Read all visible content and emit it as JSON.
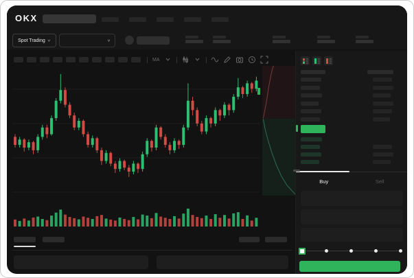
{
  "header": {
    "logo": "OKX",
    "nav_pill_count": 5,
    "market_selector": {
      "label": "Spot Trading"
    },
    "ticker_stat_count": 5
  },
  "toolbar": {
    "timeframe_pill_count": 10,
    "icons": [
      "ma-indicator-icon",
      "chevron-down-icon",
      "candle-style-icon",
      "chevron-down-icon",
      "line-wave-icon",
      "pencil-draw-icon",
      "camera-snapshot-icon",
      "history-clock-icon",
      "fullscreen-icon"
    ]
  },
  "chart_data": {
    "type": "candlestick",
    "note": "values on normalized 0-100 price scale read from pixel positions; [open,high,low,close]",
    "candles": [
      [
        48,
        50,
        40,
        42
      ],
      [
        42,
        48,
        40,
        46
      ],
      [
        46,
        47,
        37,
        40
      ],
      [
        40,
        46,
        38,
        44
      ],
      [
        44,
        45,
        35,
        38
      ],
      [
        38,
        50,
        36,
        48
      ],
      [
        48,
        57,
        46,
        55
      ],
      [
        55,
        57,
        47,
        50
      ],
      [
        50,
        64,
        49,
        62
      ],
      [
        62,
        77,
        60,
        75
      ],
      [
        75,
        95,
        73,
        83
      ],
      [
        83,
        85,
        70,
        72
      ],
      [
        72,
        74,
        62,
        64
      ],
      [
        64,
        66,
        53,
        55
      ],
      [
        55,
        62,
        53,
        60
      ],
      [
        60,
        61,
        48,
        50
      ],
      [
        50,
        52,
        40,
        42
      ],
      [
        42,
        49,
        40,
        47
      ],
      [
        47,
        48,
        36,
        38
      ],
      [
        38,
        40,
        27,
        30
      ],
      [
        30,
        38,
        28,
        36
      ],
      [
        36,
        37,
        26,
        28
      ],
      [
        28,
        30,
        21,
        24
      ],
      [
        24,
        32,
        22,
        30
      ],
      [
        30,
        31,
        23,
        25
      ],
      [
        25,
        27,
        18,
        22
      ],
      [
        22,
        30,
        20,
        28
      ],
      [
        28,
        29,
        21,
        24
      ],
      [
        24,
        37,
        22,
        35
      ],
      [
        35,
        47,
        33,
        45
      ],
      [
        45,
        46,
        37,
        40
      ],
      [
        40,
        57,
        38,
        55
      ],
      [
        55,
        56,
        46,
        48
      ],
      [
        48,
        50,
        40,
        42
      ],
      [
        42,
        44,
        35,
        38
      ],
      [
        38,
        47,
        36,
        45
      ],
      [
        45,
        46,
        39,
        42
      ],
      [
        42,
        57,
        40,
        55
      ],
      [
        55,
        88,
        53,
        75
      ],
      [
        75,
        78,
        64,
        68
      ],
      [
        68,
        70,
        56,
        58
      ],
      [
        58,
        60,
        50,
        52
      ],
      [
        52,
        64,
        50,
        62
      ],
      [
        62,
        63,
        55,
        58
      ],
      [
        58,
        70,
        56,
        68
      ],
      [
        68,
        69,
        60,
        64
      ],
      [
        64,
        74,
        62,
        72
      ],
      [
        72,
        73,
        64,
        68
      ],
      [
        68,
        80,
        66,
        78
      ],
      [
        78,
        92,
        76,
        85
      ],
      [
        85,
        86,
        77,
        80
      ],
      [
        80,
        90,
        78,
        88
      ],
      [
        88,
        89,
        81,
        84
      ],
      [
        84,
        93,
        82,
        90
      ]
    ],
    "volumes": [
      35,
      28,
      40,
      30,
      45,
      50,
      38,
      32,
      55,
      70,
      85,
      60,
      48,
      42,
      36,
      50,
      44,
      38,
      52,
      58,
      40,
      35,
      30,
      45,
      38,
      32,
      48,
      36,
      60,
      55,
      42,
      68,
      50,
      44,
      38,
      52,
      40,
      65,
      90,
      58,
      48,
      42,
      55,
      38,
      62,
      44,
      58,
      40,
      66,
      72,
      38,
      56,
      30,
      44
    ],
    "gridlines": true,
    "depth_overlay": {
      "ask_line": [
        [
          0.03,
          0.405
        ],
        [
          0.08,
          0.34
        ],
        [
          0.14,
          0.26
        ],
        [
          0.19,
          0.17
        ],
        [
          0.25,
          0.09
        ],
        [
          0.3,
          0.03
        ],
        [
          0.34,
          0
        ]
      ],
      "bid_line": [
        [
          0.03,
          0.41
        ],
        [
          0.09,
          0.49
        ],
        [
          0.17,
          0.57
        ],
        [
          0.28,
          0.66
        ],
        [
          0.42,
          0.76
        ],
        [
          0.58,
          0.85
        ],
        [
          0.75,
          0.92
        ],
        [
          1.0,
          0.99
        ]
      ]
    }
  },
  "orderbook": {
    "view_icons": [
      "book-both-icon",
      "book-bids-icon",
      "book-asks-icon"
    ],
    "ask_row_count": 6,
    "bid_row_count": 4
  },
  "trade_panel": {
    "tabs": [
      {
        "label": "Buy",
        "active": true
      },
      {
        "label": "Sell",
        "active": false
      }
    ],
    "field_count": 3,
    "slider_dot_count": 5
  },
  "bottom_panel": {
    "tab_count": 2,
    "right_pill_count": 2,
    "row_count": 2
  },
  "colors": {
    "up": "#2fbd72",
    "down": "#cf4b44",
    "accent_green": "#2fb45c",
    "depth_ask_fill": "#201416",
    "depth_bid_fill": "#142019",
    "depth_ask_line": "#7a3b3b",
    "depth_bid_line": "#2e6b55",
    "gridline": "#1d1d1d"
  }
}
